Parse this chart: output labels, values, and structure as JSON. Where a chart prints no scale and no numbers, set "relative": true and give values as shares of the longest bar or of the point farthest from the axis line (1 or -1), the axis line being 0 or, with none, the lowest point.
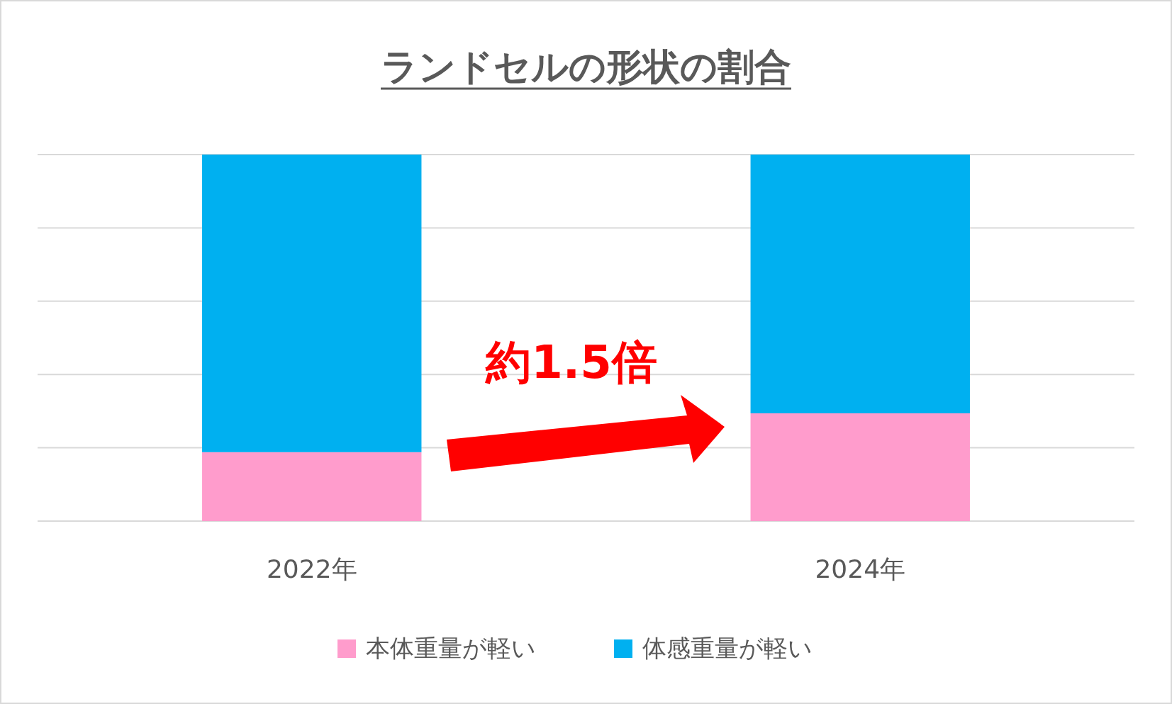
{
  "chart_data": {
    "type": "bar",
    "title": "ランドセルの形状の割合",
    "categories": [
      "2022年",
      "2024年"
    ],
    "stacked": true,
    "relative": true,
    "grid": "y",
    "legend": "bottom",
    "series": [
      {
        "name": "本体重量が軽い",
        "color": "#ff9ccc",
        "values": [
          0.188,
          0.294
        ]
      },
      {
        "name": "体感重量が軽い",
        "color": "#00b0f0",
        "values": [
          0.812,
          0.706
        ]
      }
    ],
    "annotations": [
      "約1.5倍"
    ]
  }
}
